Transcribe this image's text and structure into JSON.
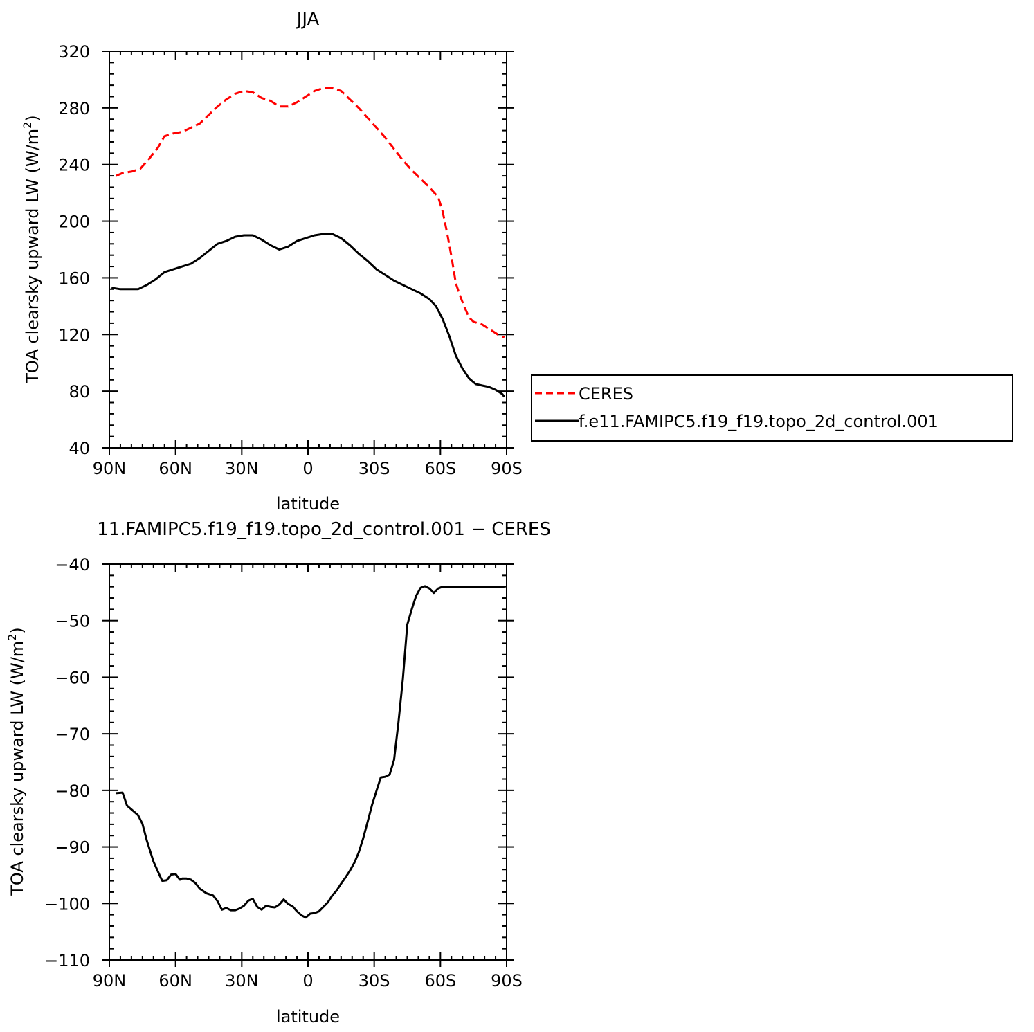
{
  "chart_data": [
    {
      "type": "line",
      "title": "JJA",
      "xlabel": "latitude",
      "ylabel": "TOA clearsky upward LW (W/m",
      "ylabel_sup": "2",
      "ylabel_close": ")",
      "xlim": [
        90,
        -90
      ],
      "ylim": [
        40,
        320
      ],
      "x_ticks": [
        90,
        60,
        30,
        0,
        -30,
        -60,
        -90
      ],
      "x_tick_labels": [
        "90N",
        "60N",
        "30N",
        "0",
        "30S",
        "60S",
        "90S"
      ],
      "y_ticks": [
        40,
        80,
        120,
        160,
        200,
        240,
        280,
        320
      ],
      "y_tick_labels": [
        "40",
        "80",
        "120",
        "160",
        "200",
        "240",
        "280",
        "320"
      ],
      "legend_position": "right",
      "series": [
        {
          "name": "CERES",
          "color": "#ff0000",
          "dash": "dashed",
          "x": [
            87,
            84,
            80,
            76,
            72,
            68,
            65,
            61,
            57,
            53,
            49,
            45,
            41,
            37,
            33,
            29,
            25,
            21,
            17,
            13,
            9,
            5,
            1,
            -3,
            -7,
            -11,
            -15,
            -19,
            -23,
            -27,
            -31,
            -35,
            -39,
            -43,
            -47,
            -51,
            -55,
            -59,
            -61,
            -63,
            -65,
            -67,
            -69,
            -71,
            -73,
            -75,
            -77,
            -79,
            -81,
            -83,
            -85,
            -87,
            -89
          ],
          "y": [
            232,
            234,
            235,
            237,
            244,
            252,
            260,
            262,
            263,
            266,
            269,
            275,
            281,
            286,
            290,
            292,
            291,
            287,
            285,
            281,
            281,
            284,
            288,
            292,
            294,
            294,
            292,
            286,
            280,
            273,
            266,
            259,
            251,
            243,
            236,
            230,
            224,
            217,
            207,
            192,
            175,
            156,
            147,
            139,
            132,
            129,
            128,
            127,
            125,
            123,
            121,
            119,
            118
          ]
        },
        {
          "name": "f.e11.FAMIPC5.f19_f19.topo_2d_control.001",
          "color": "#000000",
          "dash": "solid",
          "x": [
            89,
            85,
            81,
            77,
            73,
            69,
            65,
            61,
            57,
            53,
            49,
            45,
            41,
            37,
            33,
            29,
            25,
            21,
            17,
            13,
            9,
            5,
            1,
            -3,
            -7,
            -11,
            -15,
            -19,
            -23,
            -27,
            -31,
            -35,
            -39,
            -43,
            -47,
            -51,
            -55,
            -58,
            -61,
            -64,
            -67,
            -70,
            -73,
            -76,
            -79,
            -82,
            -85,
            -88,
            -89
          ],
          "y": [
            153,
            152,
            152,
            152,
            155,
            159,
            164,
            166,
            168,
            170,
            174,
            179,
            184,
            186,
            189,
            190,
            190,
            187,
            183,
            180,
            182,
            186,
            188,
            190,
            191,
            191,
            188,
            183,
            177,
            172,
            166,
            162,
            158,
            155,
            152,
            149,
            145,
            140,
            131,
            119,
            105,
            96,
            89,
            85,
            84,
            83,
            81,
            78,
            76
          ]
        }
      ],
      "legend": [
        {
          "label": "CERES",
          "color": "#ff0000",
          "dash": "dashed"
        },
        {
          "label": "f.e11.FAMIPC5.f19_f19.topo_2d_control.001",
          "color": "#000000",
          "dash": "solid"
        }
      ]
    },
    {
      "type": "line",
      "title": "11.FAMIPC5.f19_f19.topo_2d_control.001 − CERES",
      "xlabel": "latitude",
      "ylabel": "TOA clearsky upward LW (W/m",
      "ylabel_sup": "2",
      "ylabel_close": ")",
      "xlim": [
        90,
        -90
      ],
      "ylim": [
        -110,
        -40
      ],
      "x_ticks": [
        90,
        60,
        30,
        0,
        -30,
        -60,
        -90
      ],
      "x_tick_labels": [
        "90N",
        "60N",
        "30N",
        "0",
        "30S",
        "60S",
        "90S"
      ],
      "y_ticks": [
        -110,
        -100,
        -90,
        -80,
        -70,
        -60,
        -50,
        -40
      ],
      "y_tick_labels": [
        "−110",
        "−100",
        "−90",
        "−80",
        "−70",
        "−60",
        "−50",
        "−40"
      ],
      "series": [
        {
          "color": "#000000",
          "dash": "solid",
          "x": [
            87,
            84,
            82,
            79,
            77,
            75,
            73,
            70,
            67,
            66,
            64,
            62,
            60,
            58,
            57,
            55,
            53,
            51,
            49,
            46,
            43,
            41,
            39,
            37,
            35,
            33,
            31,
            29,
            27,
            25,
            23,
            21,
            19,
            17,
            15,
            13,
            11,
            9,
            7,
            5,
            3,
            1,
            -1,
            -3,
            -5,
            -7,
            -9,
            -11,
            -13,
            -15,
            -17,
            -19,
            -21,
            -23,
            -25,
            -27,
            -29,
            -31,
            -33,
            -35,
            -37,
            -39,
            -41,
            -43,
            -45,
            -47,
            -49,
            -51,
            -53,
            -55,
            -57,
            -59,
            -61,
            -63,
            -65,
            -67,
            -69,
            -71,
            -73,
            -75,
            -77,
            -79,
            -81,
            -83,
            -85,
            -87,
            -89
          ],
          "y": [
            -80.5,
            -80.4,
            -82.7,
            -83.7,
            -84.4,
            -85.9,
            -88.9,
            -92.6,
            -95.2,
            -96.0,
            -95.9,
            -94.9,
            -94.8,
            -95.8,
            -95.6,
            -95.6,
            -95.8,
            -96.4,
            -97.4,
            -98.2,
            -98.6,
            -99.6,
            -101.1,
            -100.8,
            -101.2,
            -101.2,
            -100.9,
            -100.4,
            -99.5,
            -99.2,
            -100.6,
            -101.1,
            -100.4,
            -100.6,
            -100.7,
            -100.2,
            -99.3,
            -100.1,
            -100.5,
            -101.4,
            -102.1,
            -102.5,
            -101.8,
            -101.7,
            -101.4,
            -100.6,
            -99.8,
            -98.6,
            -97.7,
            -96.5,
            -95.4,
            -94.2,
            -92.8,
            -91.0,
            -88.5,
            -85.6,
            -82.6,
            -80.1,
            -77.7,
            -77.6,
            -77.2,
            -74.6,
            -68.0,
            -60.3,
            -50.7,
            -48.0,
            -45.6,
            -44.2,
            -43.9,
            -44.3,
            -45.1,
            -44.3,
            -44.0,
            -44.0,
            -44.0,
            -44.0,
            -44.0,
            -44.0,
            -44.0,
            -44.0,
            -44.0,
            -44.0,
            -44.0,
            -44.0,
            -44.0,
            -44.0,
            -44.0
          ]
        }
      ]
    }
  ]
}
